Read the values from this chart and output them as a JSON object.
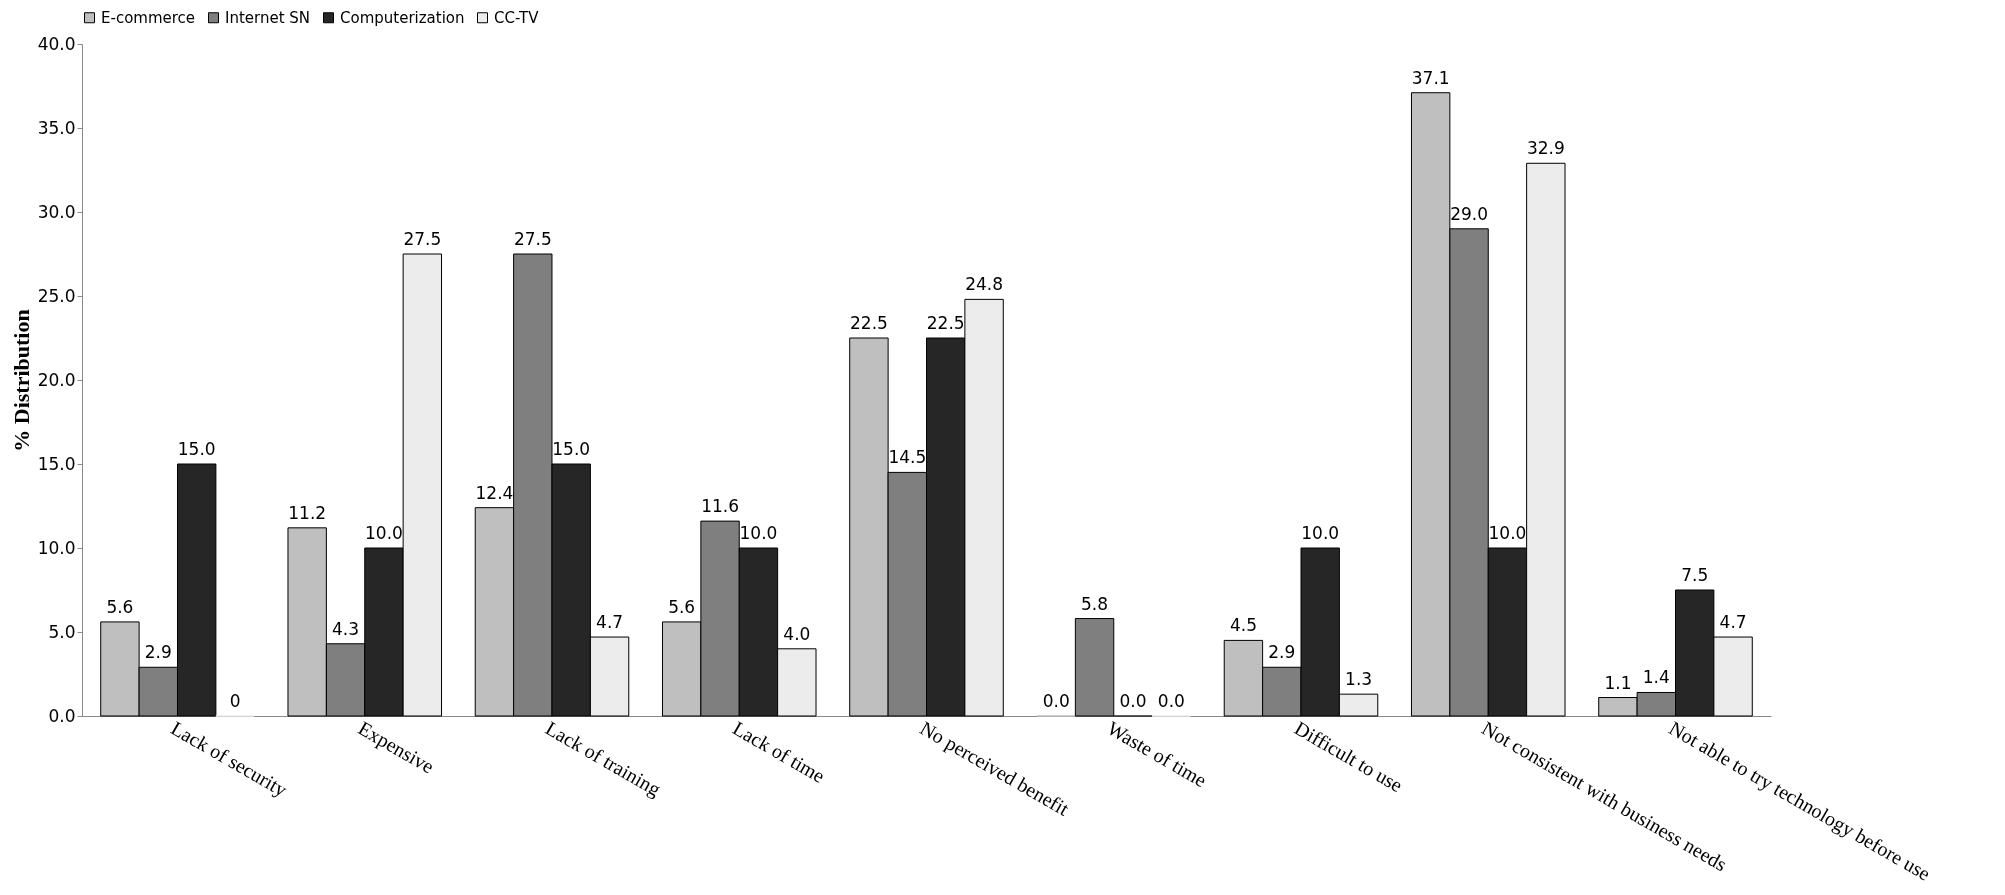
{
  "chart_data": {
    "type": "bar",
    "ylabel": "% Distribution",
    "categories": [
      "Lack of security",
      "Expensive",
      "Lack of training",
      "Lack of time",
      "No perceived benefit",
      "Waste of time",
      "Difficult to use",
      "Not consistent with business needs",
      "Not able to try technology before use"
    ],
    "series": [
      {
        "name": "E-commerce",
        "color": "#bfbfbf",
        "values": [
          5.6,
          11.2,
          12.4,
          5.6,
          22.5,
          0.0,
          4.5,
          37.1,
          1.1
        ],
        "value_labels": [
          "5.6",
          "11.2",
          "12.4",
          "5.6",
          "22.5",
          "0.0",
          "4.5",
          "37.1",
          "1.1"
        ]
      },
      {
        "name": "Internet SN",
        "color": "#7f7f7f",
        "values": [
          2.9,
          4.3,
          27.5,
          11.6,
          14.5,
          5.8,
          2.9,
          29.0,
          1.4
        ],
        "value_labels": [
          "2.9",
          "4.3",
          "27.5",
          "11.6",
          "14.5",
          "5.8",
          "2.9",
          "29.0",
          "1.4"
        ]
      },
      {
        "name": "Computerization",
        "color": "#262626",
        "values": [
          15.0,
          10.0,
          15.0,
          10.0,
          22.5,
          0.0,
          10.0,
          10.0,
          7.5
        ],
        "value_labels": [
          "15.0",
          "10.0",
          "15.0",
          "10.0",
          "22.5",
          "0.0",
          "10.0",
          "10.0",
          "7.5"
        ]
      },
      {
        "name": "CC-TV",
        "color": "#ececec",
        "values": [
          0,
          27.5,
          4.7,
          4.0,
          24.8,
          0.0,
          1.3,
          32.9,
          4.7
        ],
        "value_labels": [
          "0",
          "27.5",
          "4.7",
          "4.0",
          "24.8",
          "0.0",
          "1.3",
          "32.9",
          "4.7"
        ]
      }
    ],
    "ylim": [
      0,
      40
    ],
    "yticks": [
      {
        "value": 0,
        "label": "0.0"
      },
      {
        "value": 5,
        "label": "5.0"
      },
      {
        "value": 10,
        "label": "10.0"
      },
      {
        "value": 15,
        "label": "15.0"
      },
      {
        "value": 20,
        "label": "20.0"
      },
      {
        "value": 25,
        "label": "25.0"
      },
      {
        "value": 30,
        "label": "30.0"
      },
      {
        "value": 35,
        "label": "35.0"
      },
      {
        "value": 40,
        "label": "40.0"
      }
    ],
    "grid": false,
    "legend": "top"
  }
}
